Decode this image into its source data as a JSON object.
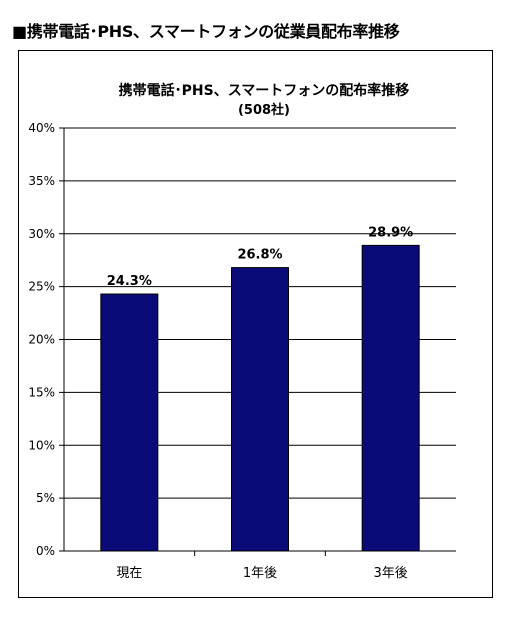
{
  "heading": "■携帯電話･PHS、スマートフォンの従業員配布率推移",
  "chart_data": {
    "type": "bar",
    "title": "携帯電話･PHS、スマートフォンの配布率推移",
    "subtitle": "(508社)",
    "categories": [
      "現在",
      "1年後",
      "3年後"
    ],
    "values": [
      24.3,
      26.8,
      28.9
    ],
    "data_labels": [
      "24.3%",
      "26.8%",
      "28.9%"
    ],
    "ylim": [
      0,
      40
    ],
    "y_ticks": [
      0,
      5,
      10,
      15,
      20,
      25,
      30,
      35,
      40
    ],
    "y_tick_labels": [
      "0%",
      "5%",
      "10%",
      "15%",
      "20%",
      "25%",
      "30%",
      "35%",
      "40%"
    ],
    "xlabel": "",
    "ylabel": "",
    "grid": true,
    "bar_color": "#0a0a78"
  }
}
